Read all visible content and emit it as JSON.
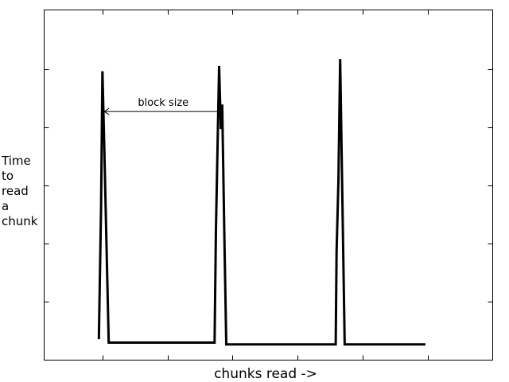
{
  "chart_data": {
    "type": "line",
    "title": "",
    "xlabel": "chunks read ->",
    "ylabel_lines": [
      "Time",
      "to",
      "read",
      "a",
      "chunk"
    ],
    "xlim": [
      0,
      100
    ],
    "ylim": [
      0,
      100
    ],
    "grid": false,
    "series": [
      {
        "x": [
          12.2,
          12.7,
          13.0,
          13.4,
          14.4,
          38.0,
          38.3,
          39.0,
          39.4,
          39.7,
          40.2,
          40.6,
          65.0,
          65.2,
          65.6,
          66.0,
          66.4,
          67.0,
          67.3,
          85.0
        ],
        "y": [
          6.0,
          44.0,
          82.5,
          61.0,
          5.0,
          5.0,
          37.0,
          84.0,
          66.0,
          73.0,
          34.0,
          4.5,
          4.5,
          31.0,
          51.0,
          86.0,
          53.0,
          4.5,
          4.5,
          4.5
        ]
      }
    ],
    "annotations": [
      {
        "text": "block size",
        "x_from": 13.4,
        "x_to": 39.7,
        "y": 71.0
      }
    ]
  }
}
